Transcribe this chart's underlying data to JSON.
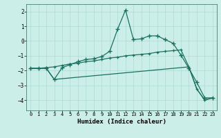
{
  "xlabel": "Humidex (Indice chaleur)",
  "bg_color": "#cceee8",
  "grid_color": "#b0ddd8",
  "line_color": "#1a7060",
  "xlim": [
    -0.5,
    23.5
  ],
  "ylim": [
    -4.7,
    2.5
  ],
  "xticks": [
    0,
    1,
    2,
    3,
    4,
    5,
    6,
    7,
    8,
    9,
    10,
    11,
    12,
    13,
    14,
    15,
    16,
    17,
    18,
    19,
    20,
    21,
    22,
    23
  ],
  "yticks": [
    -4,
    -3,
    -2,
    -1,
    0,
    1,
    2
  ],
  "line1_x": [
    0,
    1,
    2,
    3,
    4,
    5,
    6,
    7,
    8,
    9,
    10,
    11,
    12,
    13,
    14,
    15,
    16,
    17,
    18,
    19,
    20,
    21,
    22,
    23
  ],
  "line1_y": [
    -1.85,
    -1.85,
    -1.85,
    -2.6,
    -1.8,
    -1.6,
    -1.4,
    -1.25,
    -1.2,
    -1.05,
    -0.7,
    0.8,
    2.1,
    0.1,
    0.15,
    0.35,
    0.35,
    0.1,
    -0.15,
    -0.95,
    -1.85,
    -2.8,
    -3.85,
    -3.85
  ],
  "line2_x": [
    0,
    1,
    2,
    3,
    4,
    5,
    6,
    7,
    8,
    9,
    10,
    11,
    12,
    13,
    14,
    15,
    16,
    17,
    18,
    19,
    20,
    21,
    22,
    23
  ],
  "line2_y": [
    -1.85,
    -1.85,
    -1.8,
    -1.75,
    -1.65,
    -1.55,
    -1.5,
    -1.4,
    -1.35,
    -1.25,
    -1.15,
    -1.1,
    -1.0,
    -0.95,
    -0.9,
    -0.85,
    -0.75,
    -0.7,
    -0.65,
    -0.6,
    -1.75,
    -3.25,
    -4.0,
    -3.85
  ],
  "line3_x": [
    0,
    2,
    3,
    20,
    21,
    22,
    23
  ],
  "line3_y": [
    -1.85,
    -1.85,
    -2.6,
    -1.75,
    -3.25,
    -4.0,
    -3.85
  ]
}
